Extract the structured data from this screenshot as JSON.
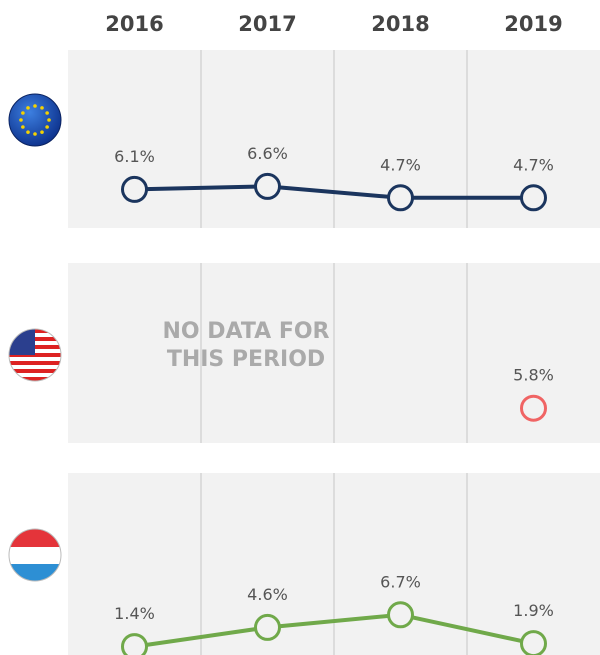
{
  "chart_data": {
    "type": "line",
    "categories": [
      "2016",
      "2017",
      "2018",
      "2019"
    ],
    "series": [
      {
        "color": "#1b355e",
        "values": [
          6.1,
          6.6,
          4.7,
          4.7
        ],
        "value_labels": [
          "6.1%",
          "6.6%",
          "4.7%",
          "4.7%"
        ]
      },
      {
        "color": "#f06464",
        "values": [
          null,
          null,
          null,
          5.8
        ],
        "value_labels": [
          null,
          null,
          null,
          "5.8%"
        ]
      },
      {
        "color": "#70a94a",
        "values": [
          1.4,
          4.6,
          6.7,
          1.9
        ],
        "value_labels": [
          "1.4%",
          "4.6%",
          "6.7%",
          "1.9%"
        ]
      }
    ],
    "annotation": "NO DATA FOR THIS PERIOD"
  }
}
